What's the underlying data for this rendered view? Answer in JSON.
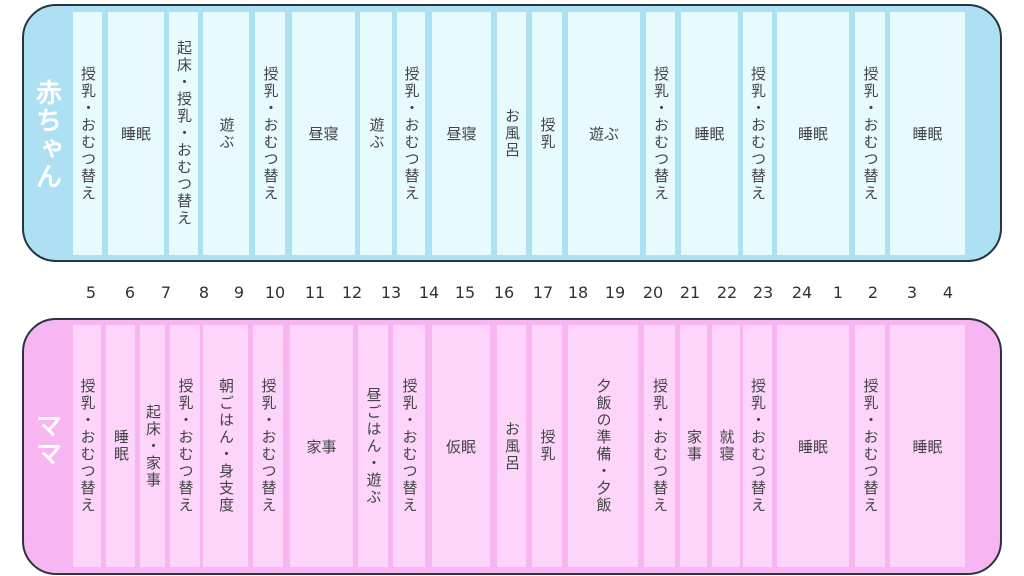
{
  "baby": {
    "label": "赤ちゃん",
    "color": "#aee0f4",
    "block_color": "#e7fbff",
    "activities": [
      "授乳・おむつ替え",
      "睡眠",
      "起床・授乳・おむつ替え",
      "遊ぶ",
      "授乳・おむつ替え",
      "昼寝",
      "遊ぶ",
      "授乳・おむつ替え",
      "昼寝",
      "お風呂",
      "授乳",
      "遊ぶ",
      "授乳・おむつ替え",
      "睡眠",
      "授乳・おむつ替え",
      "睡眠",
      "授乳・おむつ替え",
      "睡眠"
    ]
  },
  "hours": [
    "5",
    "6",
    "7",
    "8",
    "9",
    "10",
    "11",
    "12",
    "13",
    "14",
    "15",
    "16",
    "17",
    "18",
    "19",
    "20",
    "21",
    "22",
    "23",
    "24",
    "1",
    "2",
    "3",
    "4"
  ],
  "mama": {
    "label": "ママ",
    "color": "#f7b5f1",
    "block_color": "#fdd5fb",
    "activities": [
      "授乳・おむつ替え",
      "睡眠",
      "起床・家事",
      "授乳・おむつ替え",
      "朝ごはん・身支度",
      "授乳・おむつ替え",
      "家事",
      "昼ごはん・遊ぶ",
      "授乳・おむつ替え",
      "仮眠",
      "お風呂",
      "授乳",
      "夕飯の準備・夕飯",
      "授乳・おむつ替え",
      "家事",
      "就寝",
      "授乳・おむつ替え",
      "睡眠",
      "授乳・おむつ替え",
      "睡眠"
    ]
  }
}
